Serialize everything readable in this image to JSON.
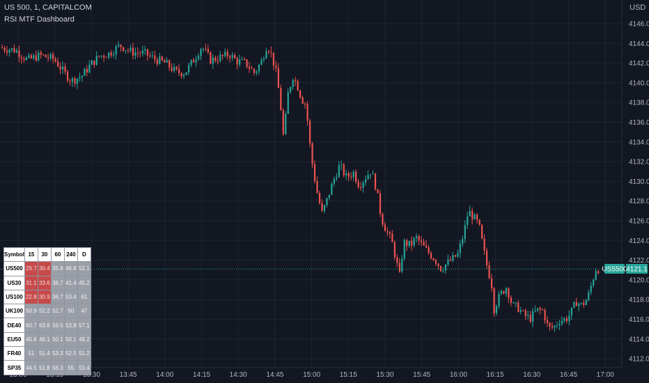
{
  "header": {
    "symbol_line": "US 500, 1, CAPITALCOM",
    "indicator_name": "RSI MTF Dashboard"
  },
  "price_axis": {
    "currency": "USD",
    "labels": [
      "4146.0",
      "4144.0",
      "4142.0",
      "4140.0",
      "4138.0",
      "4136.0",
      "4134.0",
      "4132.0",
      "4130.0",
      "4128.0",
      "4126.0",
      "4124.0",
      "4122.0",
      "4120.0",
      "4118.0",
      "4116.0",
      "4114.0",
      "4112.0"
    ]
  },
  "time_axis": {
    "labels": [
      "13:00",
      "13:15",
      "13:30",
      "13:45",
      "14:00",
      "14:15",
      "14:30",
      "14:45",
      "15:00",
      "15:15",
      "15:30",
      "15:45",
      "16:00",
      "16:15",
      "16:30",
      "16:45",
      "17:00"
    ]
  },
  "last_price": {
    "symbol_tag": "US5500",
    "price_tag": "4121.1",
    "value": 4121.1
  },
  "colors": {
    "background": "#131722",
    "up": "#26a69a",
    "down": "#ef5350",
    "grid": "#1f2431",
    "price_line": "#26a69a"
  },
  "rsi_table": {
    "headers": [
      "Symbol",
      "15",
      "30",
      "60",
      "240",
      "D"
    ],
    "rows": [
      {
        "symbol": "US500",
        "values": [
          "29.7",
          "30.4",
          "35.8",
          "46.8",
          "52.1"
        ],
        "hot": [
          true,
          true,
          false,
          false,
          false
        ]
      },
      {
        "symbol": "US30",
        "values": [
          "31.1",
          "33.6",
          "36.7",
          "41.4",
          "45.2"
        ],
        "hot": [
          true,
          true,
          false,
          false,
          false
        ]
      },
      {
        "symbol": "US100",
        "values": [
          "22.8",
          "30.9",
          "36.7",
          "53.4",
          "61"
        ],
        "hot": [
          true,
          true,
          false,
          false,
          false
        ]
      },
      {
        "symbol": "UK100",
        "values": [
          "50.9",
          "52.2",
          "52.7",
          "50",
          "47"
        ],
        "hot": [
          false,
          false,
          false,
          false,
          false
        ]
      },
      {
        "symbol": "DE40",
        "values": [
          "60.7",
          "63.6",
          "59.5",
          "53.8",
          "57.1"
        ],
        "hot": [
          false,
          false,
          false,
          false,
          false
        ]
      },
      {
        "symbol": "EU50",
        "values": [
          "45.6",
          "46.1",
          "50.1",
          "50.1",
          "49.2"
        ],
        "hot": [
          false,
          false,
          false,
          false,
          false
        ]
      },
      {
        "symbol": "FR40",
        "values": [
          "51",
          "51.4",
          "53.3",
          "52.5",
          "51.2"
        ],
        "hot": [
          false,
          false,
          false,
          false,
          false
        ]
      },
      {
        "symbol": "SP35",
        "values": [
          "44.5",
          "51.8",
          "56.3",
          "55",
          "51.4"
        ],
        "hot": [
          false,
          false,
          false,
          false,
          false
        ]
      }
    ]
  }
}
